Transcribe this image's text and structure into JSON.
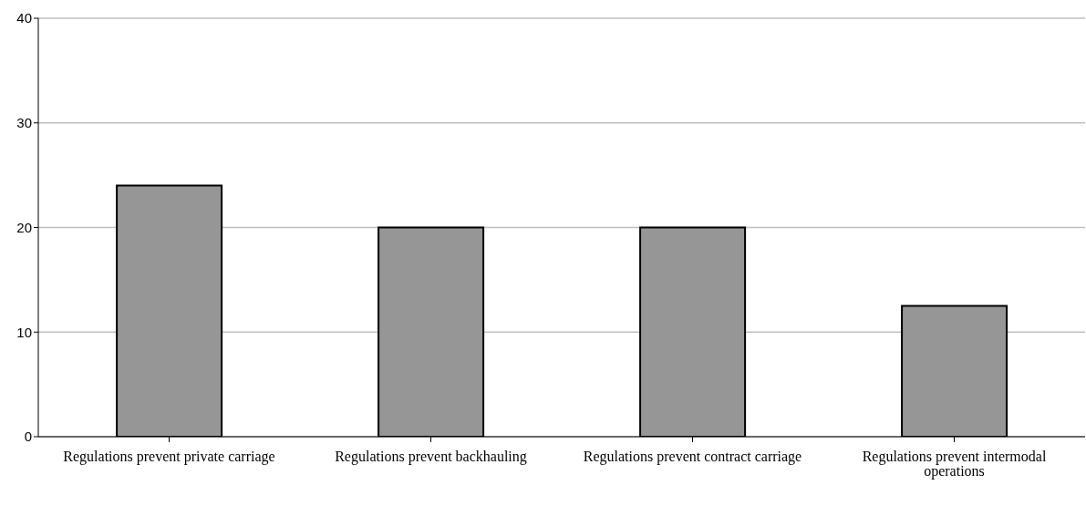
{
  "chart_data": {
    "type": "bar",
    "categories": [
      "Regulations prevent private carriage",
      "Regulations prevent backhauling",
      "Regulations prevent contract carriage",
      "Regulations prevent intermodal operations"
    ],
    "values": [
      24,
      20,
      20,
      12.5
    ],
    "color": "#969696",
    "ylim": [
      0,
      40
    ],
    "yticks": [
      0,
      10,
      20,
      30,
      40
    ],
    "grid": "y"
  }
}
